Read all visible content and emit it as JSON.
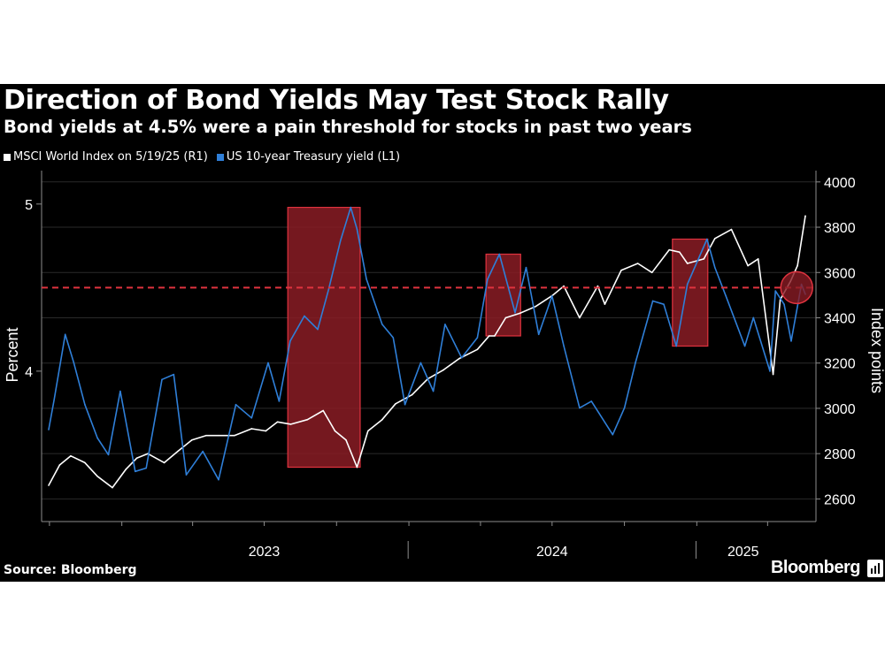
{
  "title": "Direction of Bond Yields May Test Stock Rally",
  "subtitle": "Bond yields at 4.5% were a pain threshold for stocks in past two years",
  "source": "Source: Bloomberg",
  "brand": "Bloomberg",
  "brand_icon": "bloomberg-bars-icon",
  "colors": {
    "background": "#000000",
    "msci": "#ffffff",
    "yield": "#2f7fd8",
    "threshold": "#e0333f",
    "box_fill": "#8a1c24",
    "box_edge": "#e0333f",
    "axis": "#8c8c8c"
  },
  "chart_data": {
    "type": "line",
    "legend_position": "top-left",
    "grid": "horizontal",
    "left_axis_label": "Percent",
    "right_axis_label": "Index points",
    "left_ylim": [
      3.1,
      5.2
    ],
    "right_ylim": [
      2500,
      4050
    ],
    "left_ticks": [
      {
        "v": 5,
        "label": "5"
      },
      {
        "v": 4,
        "label": "4"
      }
    ],
    "right_ticks": [
      {
        "v": 2600,
        "label": "2600"
      },
      {
        "v": 2800,
        "label": "2800"
      },
      {
        "v": 3000,
        "label": "3000"
      },
      {
        "v": 3200,
        "label": "3200"
      },
      {
        "v": 3400,
        "label": "3400"
      },
      {
        "v": 3600,
        "label": "3600"
      },
      {
        "v": 3800,
        "label": "3800"
      },
      {
        "v": 4000,
        "label": "4000"
      }
    ],
    "x_range": [
      "2022-09-30",
      "2025-05-19"
    ],
    "x_minor_ticks": [
      "2022-10-01",
      "2023-01-01",
      "2023-04-01",
      "2023-07-01",
      "2023-10-01",
      "2024-01-01",
      "2024-04-01",
      "2024-07-01",
      "2024-10-01",
      "2025-01-01",
      "2025-04-01"
    ],
    "year_dividers": [
      "2023-12-31",
      "2024-12-31"
    ],
    "year_labels": [
      {
        "label": "2023",
        "at": "2023-07-01"
      },
      {
        "label": "2024",
        "at": "2024-07-01"
      },
      {
        "label": "2025",
        "at": "2025-03-01"
      }
    ],
    "threshold": {
      "axis": "left",
      "value": 4.5
    },
    "highlight_boxes": [
      {
        "from": "2023-07-31",
        "to": "2023-10-31"
      },
      {
        "from": "2024-04-08",
        "to": "2024-05-22"
      },
      {
        "from": "2024-12-01",
        "to": "2025-01-15"
      }
    ],
    "highlight_circle": {
      "date": "2025-05-08",
      "axis": "left",
      "value": 4.5
    },
    "series": [
      {
        "name": "MSCI World Index on 5/19/25 (R1)",
        "axis": "right",
        "points": [
          [
            "2022-09-30",
            2660
          ],
          [
            "2022-10-14",
            2750
          ],
          [
            "2022-10-28",
            2790
          ],
          [
            "2022-11-15",
            2760
          ],
          [
            "2022-12-01",
            2700
          ],
          [
            "2022-12-20",
            2650
          ],
          [
            "2023-01-06",
            2730
          ],
          [
            "2023-01-20",
            2780
          ],
          [
            "2023-02-03",
            2800
          ],
          [
            "2023-02-24",
            2760
          ],
          [
            "2023-03-13",
            2810
          ],
          [
            "2023-03-31",
            2860
          ],
          [
            "2023-04-18",
            2880
          ],
          [
            "2023-05-04",
            2880
          ],
          [
            "2023-05-24",
            2880
          ],
          [
            "2023-06-15",
            2910
          ],
          [
            "2023-07-03",
            2900
          ],
          [
            "2023-07-18",
            2940
          ],
          [
            "2023-08-04",
            2930
          ],
          [
            "2023-08-25",
            2950
          ],
          [
            "2023-09-14",
            2990
          ],
          [
            "2023-09-29",
            2900
          ],
          [
            "2023-10-13",
            2860
          ],
          [
            "2023-10-27",
            2740
          ],
          [
            "2023-11-10",
            2900
          ],
          [
            "2023-11-28",
            2950
          ],
          [
            "2023-12-15",
            3020
          ],
          [
            "2024-01-05",
            3060
          ],
          [
            "2024-01-25",
            3130
          ],
          [
            "2024-02-14",
            3170
          ],
          [
            "2024-03-05",
            3220
          ],
          [
            "2024-03-28",
            3260
          ],
          [
            "2024-04-12",
            3320
          ],
          [
            "2024-04-19",
            3320
          ],
          [
            "2024-05-03",
            3400
          ],
          [
            "2024-05-21",
            3420
          ],
          [
            "2024-06-10",
            3450
          ],
          [
            "2024-07-02",
            3500
          ],
          [
            "2024-07-16",
            3540
          ],
          [
            "2024-08-05",
            3400
          ],
          [
            "2024-08-28",
            3540
          ],
          [
            "2024-09-06",
            3460
          ],
          [
            "2024-09-27",
            3610
          ],
          [
            "2024-10-18",
            3640
          ],
          [
            "2024-11-05",
            3600
          ],
          [
            "2024-11-27",
            3700
          ],
          [
            "2024-12-10",
            3690
          ],
          [
            "2024-12-20",
            3640
          ],
          [
            "2025-01-10",
            3660
          ],
          [
            "2025-01-24",
            3750
          ],
          [
            "2025-02-14",
            3790
          ],
          [
            "2025-03-07",
            3630
          ],
          [
            "2025-03-20",
            3660
          ],
          [
            "2025-04-08",
            3150
          ],
          [
            "2025-04-17",
            3480
          ],
          [
            "2025-04-30",
            3560
          ],
          [
            "2025-05-09",
            3630
          ],
          [
            "2025-05-19",
            3850
          ]
        ]
      },
      {
        "name": "US 10-year Treasury yield (L1)",
        "axis": "left",
        "points": [
          [
            "2022-09-30",
            3.65
          ],
          [
            "2022-10-07",
            3.83
          ],
          [
            "2022-10-21",
            4.22
          ],
          [
            "2022-11-01",
            4.05
          ],
          [
            "2022-11-15",
            3.8
          ],
          [
            "2022-12-01",
            3.6
          ],
          [
            "2022-12-15",
            3.5
          ],
          [
            "2022-12-30",
            3.88
          ],
          [
            "2023-01-18",
            3.4
          ],
          [
            "2023-02-01",
            3.42
          ],
          [
            "2023-02-21",
            3.95
          ],
          [
            "2023-03-08",
            3.98
          ],
          [
            "2023-03-24",
            3.38
          ],
          [
            "2023-04-14",
            3.52
          ],
          [
            "2023-05-04",
            3.35
          ],
          [
            "2023-05-26",
            3.8
          ],
          [
            "2023-06-15",
            3.72
          ],
          [
            "2023-07-06",
            4.05
          ],
          [
            "2023-07-20",
            3.82
          ],
          [
            "2023-08-03",
            4.18
          ],
          [
            "2023-08-21",
            4.33
          ],
          [
            "2023-09-07",
            4.25
          ],
          [
            "2023-09-21",
            4.49
          ],
          [
            "2023-10-06",
            4.78
          ],
          [
            "2023-10-19",
            4.98
          ],
          [
            "2023-10-27",
            4.85
          ],
          [
            "2023-11-08",
            4.55
          ],
          [
            "2023-11-28",
            4.28
          ],
          [
            "2023-12-12",
            4.2
          ],
          [
            "2023-12-27",
            3.8
          ],
          [
            "2024-01-16",
            4.05
          ],
          [
            "2024-02-01",
            3.88
          ],
          [
            "2024-02-16",
            4.28
          ],
          [
            "2024-03-08",
            4.08
          ],
          [
            "2024-03-28",
            4.2
          ],
          [
            "2024-04-10",
            4.55
          ],
          [
            "2024-04-25",
            4.7
          ],
          [
            "2024-05-15",
            4.35
          ],
          [
            "2024-05-29",
            4.62
          ],
          [
            "2024-06-14",
            4.22
          ],
          [
            "2024-07-01",
            4.45
          ],
          [
            "2024-07-16",
            4.15
          ],
          [
            "2024-08-05",
            3.78
          ],
          [
            "2024-08-20",
            3.82
          ],
          [
            "2024-09-16",
            3.62
          ],
          [
            "2024-10-01",
            3.78
          ],
          [
            "2024-10-15",
            4.05
          ],
          [
            "2024-11-06",
            4.42
          ],
          [
            "2024-11-20",
            4.4
          ],
          [
            "2024-12-06",
            4.15
          ],
          [
            "2024-12-20",
            4.52
          ],
          [
            "2025-01-14",
            4.79
          ],
          [
            "2025-01-24",
            4.62
          ],
          [
            "2025-02-07",
            4.45
          ],
          [
            "2025-03-03",
            4.15
          ],
          [
            "2025-03-14",
            4.32
          ],
          [
            "2025-04-04",
            4.0
          ],
          [
            "2025-04-11",
            4.48
          ],
          [
            "2025-04-22",
            4.4
          ],
          [
            "2025-05-01",
            4.18
          ],
          [
            "2025-05-14",
            4.52
          ],
          [
            "2025-05-19",
            4.46
          ]
        ]
      }
    ]
  }
}
